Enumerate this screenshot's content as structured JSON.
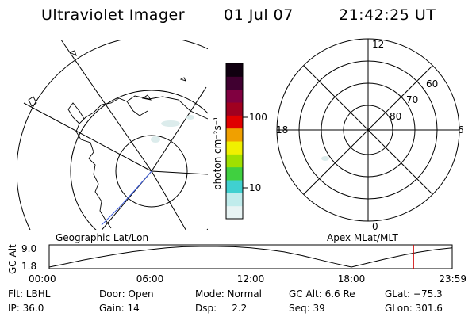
{
  "header": {
    "title": "Ultraviolet Imager",
    "date": "01 Jul 07",
    "time": "21:42:25 UT"
  },
  "geo_map": {
    "label": "Geographic Lat/Lon"
  },
  "colorbar": {
    "unit_label": "photon cm⁻²s⁻¹",
    "ticks": [
      "100",
      "10"
    ],
    "colors": [
      "#e8f4f4",
      "#c0ecec",
      "#40d0d0",
      "#40d040",
      "#a0e000",
      "#f0f000",
      "#f0a000",
      "#e00000",
      "#a00020",
      "#800040",
      "#400030",
      "#100010"
    ]
  },
  "polar": {
    "label": "Apex MLat/MLT",
    "mlt_labels": {
      "top": "12",
      "bottom": "0",
      "left": "18",
      "right": "6"
    },
    "lat_labels": [
      "60",
      "70",
      "80"
    ]
  },
  "chart_data": {
    "type": "line",
    "title": "",
    "ylabel": "GC Alt",
    "yticks": [
      "9.0",
      "1.8"
    ],
    "ylim": [
      1.8,
      9.0
    ],
    "xticks": [
      "00:00",
      "06:00",
      "12:00",
      "18:00",
      "23:59"
    ],
    "xlim_hours": [
      0,
      24
    ],
    "current_time_hours": 21.7,
    "series": [
      {
        "x": [
          0,
          1,
          2,
          3,
          4,
          5,
          6,
          7,
          8,
          9,
          10,
          11,
          12,
          13,
          14,
          15,
          16,
          17,
          18,
          19,
          20,
          21,
          22,
          23,
          24
        ],
        "y": [
          1.8,
          3.0,
          4.2,
          5.3,
          6.3,
          7.2,
          7.9,
          8.5,
          8.9,
          9.0,
          9.0,
          8.9,
          8.5,
          7.9,
          7.1,
          5.9,
          4.5,
          3.1,
          1.8,
          3.2,
          4.6,
          5.9,
          7.0,
          7.9,
          8.5
        ]
      }
    ],
    "marker_color": "#d00000"
  },
  "status": {
    "flt": "Flt: LBHL",
    "ip": "IP: 36.0",
    "door": "Door: Open",
    "gain": "Gain: 14",
    "mode": "Mode: Normal",
    "dsp": "Dsp:     2.2",
    "gcalt": "GC Alt: 6.6 Re",
    "seq": "Seq: 39",
    "glat": "GLat: −75.3",
    "glon": "GLon: 301.6"
  }
}
